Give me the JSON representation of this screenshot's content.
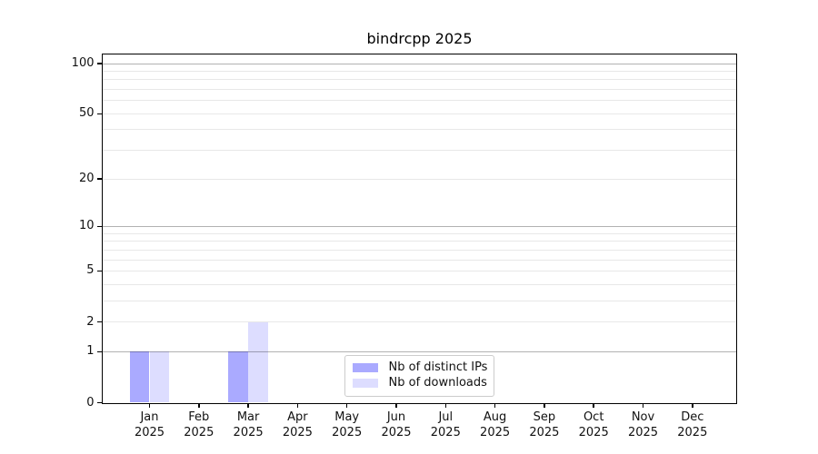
{
  "chart_data": {
    "type": "bar",
    "title": "bindrcpp 2025",
    "categories": [
      "Jan",
      "Feb",
      "Mar",
      "Apr",
      "May",
      "Jun",
      "Jul",
      "Aug",
      "Sep",
      "Oct",
      "Nov",
      "Dec"
    ],
    "category_year": "2025",
    "series": [
      {
        "name": "Nb of distinct IPs",
        "color": "#aaaaff",
        "values": [
          1,
          0,
          1,
          0,
          0,
          0,
          0,
          0,
          0,
          0,
          0,
          0
        ]
      },
      {
        "name": "Nb of downloads",
        "color": "#ddddff",
        "values": [
          1,
          0,
          2,
          0,
          0,
          0,
          0,
          0,
          0,
          0,
          0,
          0
        ]
      }
    ],
    "yscale": "log1p",
    "yticks": [
      0,
      1,
      2,
      5,
      10,
      20,
      50,
      100
    ],
    "ylim": [
      0,
      113
    ],
    "xlabel": "",
    "ylabel": "",
    "grid": {
      "orientation": "horizontal",
      "major_at": [
        1,
        10,
        100
      ],
      "minor_at": [
        2,
        3,
        4,
        5,
        6,
        7,
        8,
        9,
        20,
        30,
        40,
        50,
        60,
        70,
        80,
        90
      ],
      "major_color": "rgba(0,0,0,0.30)",
      "minor_color": "rgba(0,0,0,0.09)"
    },
    "legend_position": "lower center inside",
    "spine_color": "#000000",
    "text_color": "#111111",
    "background_color": "#ffffff"
  }
}
